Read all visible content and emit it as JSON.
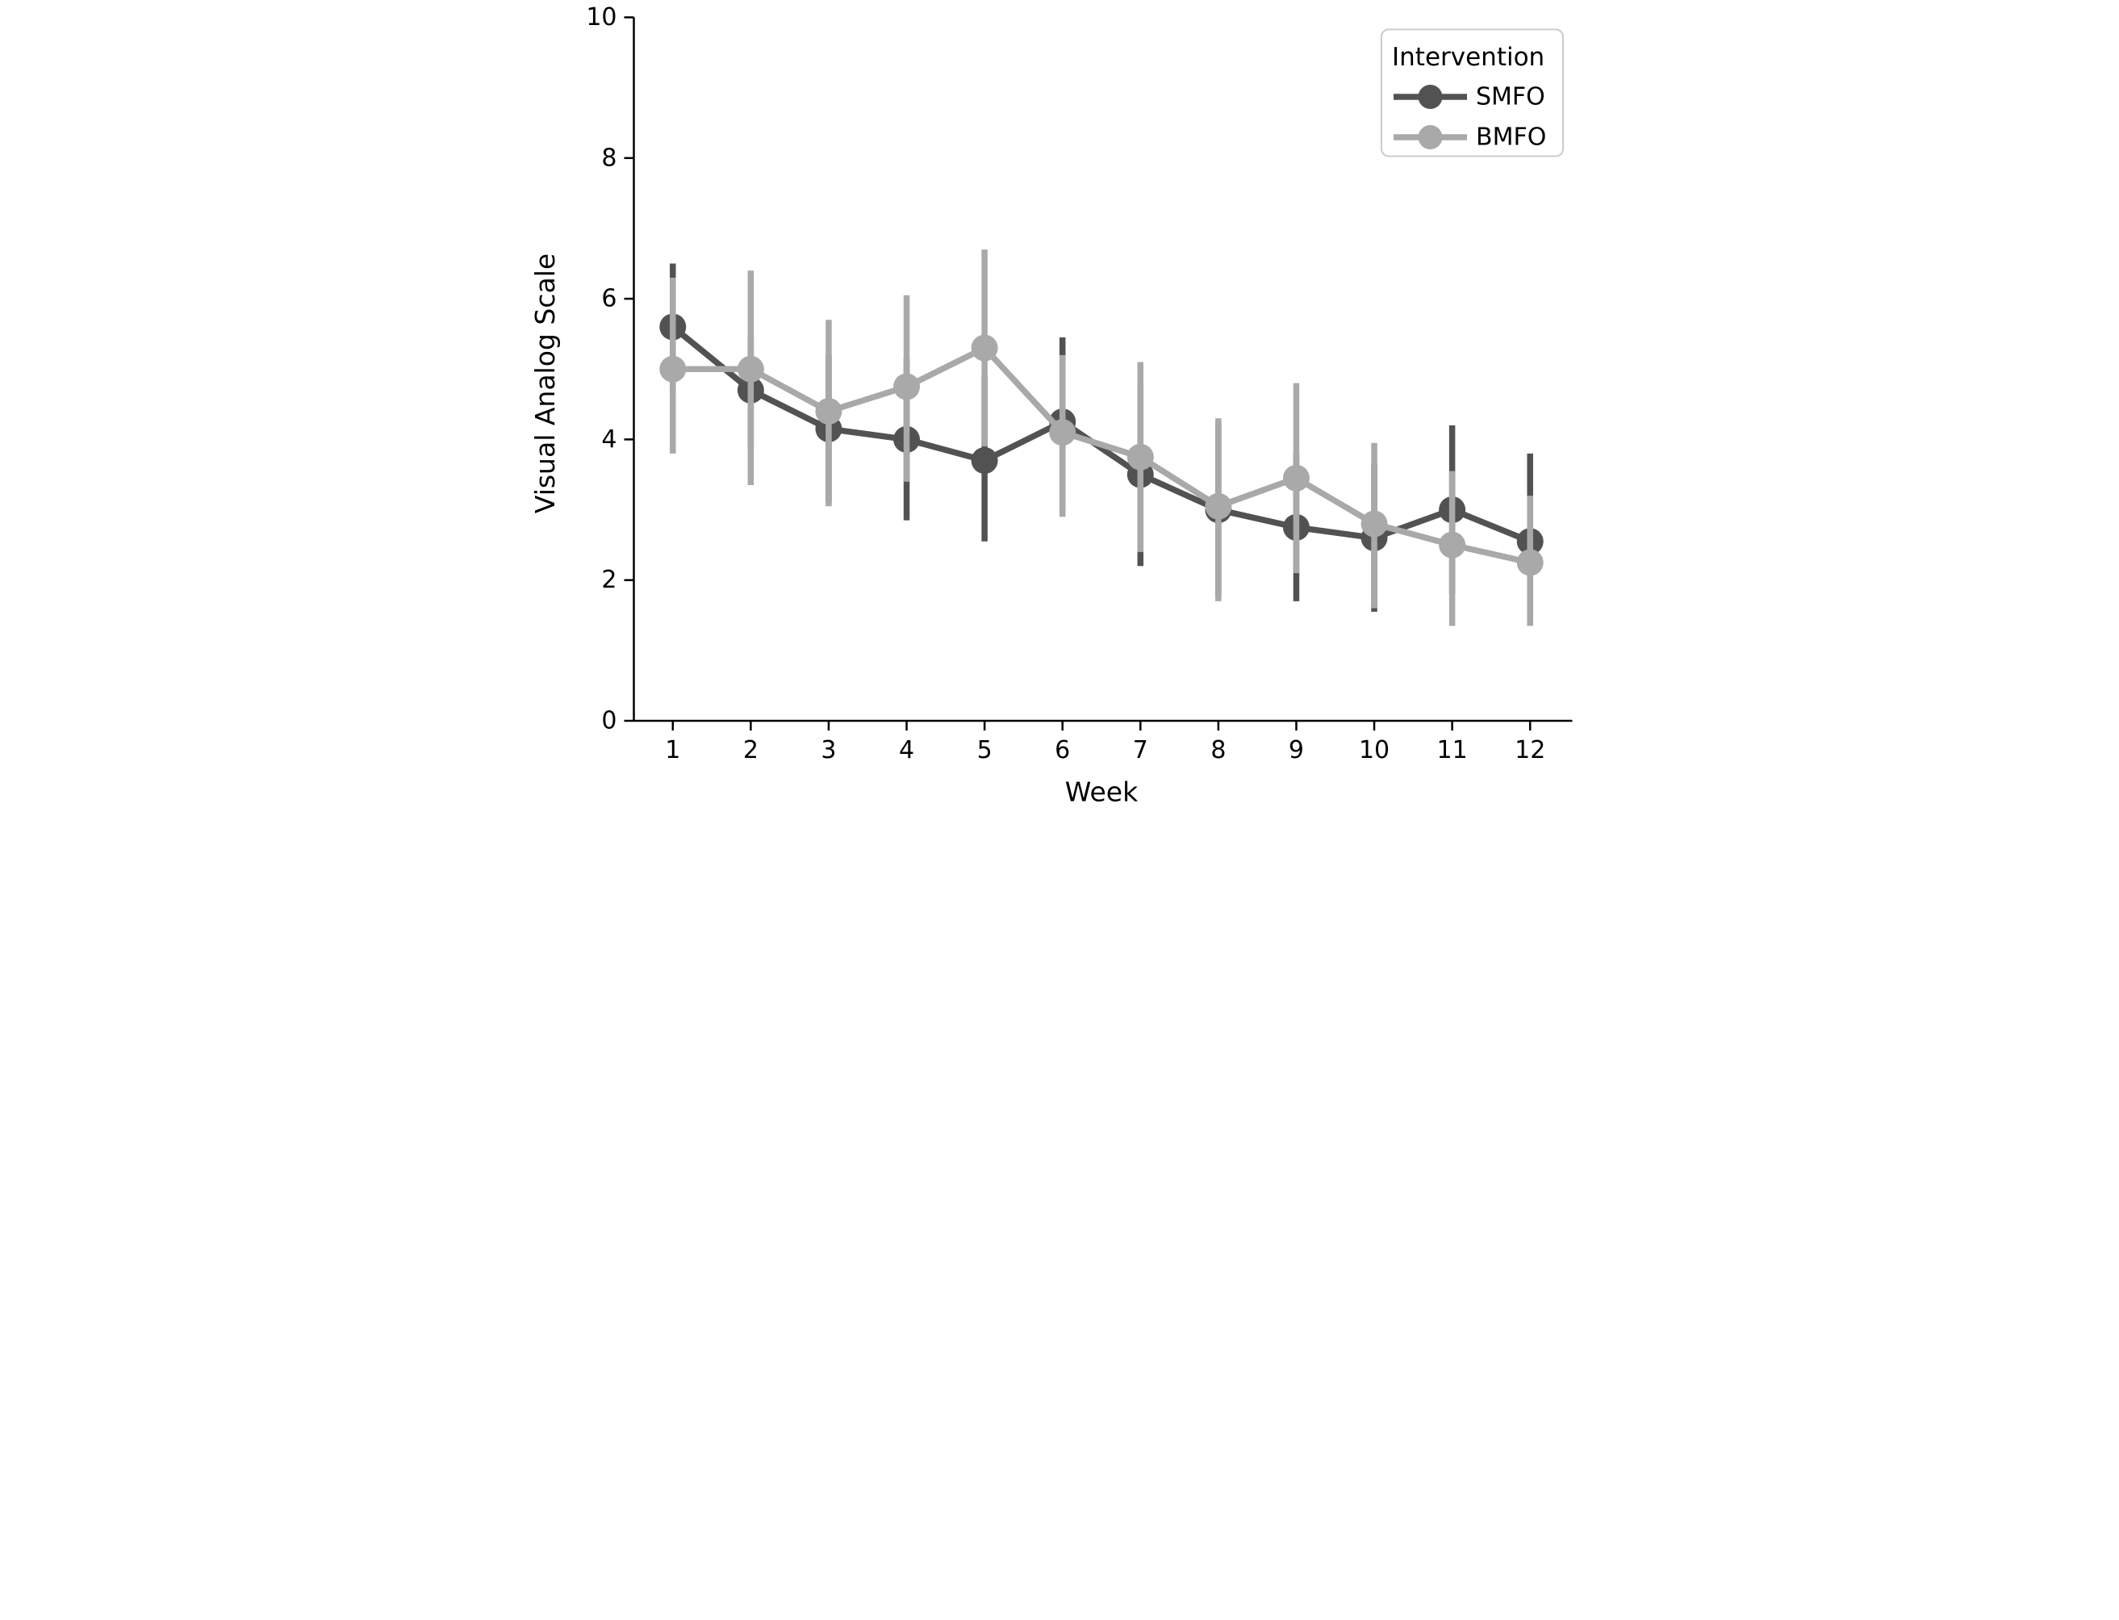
{
  "figure": {
    "background": "#ffffff",
    "axis_color": "#000000",
    "tick_label_fontsize": 60,
    "axis_label_fontsize": 66
  },
  "chart_data": {
    "type": "line",
    "title": "",
    "xlabel": "Week",
    "ylabel": "Visual Analog Scale",
    "categories": [
      "1",
      "2",
      "3",
      "4",
      "5",
      "6",
      "7",
      "8",
      "9",
      "10",
      "11",
      "12"
    ],
    "ylim": [
      0,
      10
    ],
    "yticks": [
      0,
      2,
      4,
      6,
      8,
      10
    ],
    "grid": false,
    "error_bars": true,
    "legend": {
      "title": "Intervention",
      "position": "upper right",
      "border_color": "#cccccc",
      "background": "#ffffff"
    },
    "series": [
      {
        "name": "SMFO",
        "color": "#525252",
        "values": [
          5.6,
          4.7,
          4.15,
          4.0,
          3.7,
          4.25,
          3.5,
          3.0,
          2.75,
          2.6,
          3.0,
          2.55
        ],
        "ci_low": [
          4.7,
          3.9,
          3.1,
          2.85,
          2.55,
          3.0,
          2.2,
          1.75,
          1.7,
          1.55,
          1.8,
          1.4
        ],
        "ci_high": [
          6.5,
          5.45,
          5.2,
          5.15,
          4.9,
          5.45,
          4.8,
          4.25,
          3.8,
          3.65,
          4.2,
          3.8
        ]
      },
      {
        "name": "BMFO",
        "color": "#a9a9a9",
        "values": [
          5.0,
          5.0,
          4.4,
          4.75,
          5.3,
          4.1,
          3.75,
          3.05,
          3.45,
          2.8,
          2.5,
          2.25
        ],
        "ci_low": [
          3.8,
          3.35,
          3.05,
          3.4,
          3.9,
          2.9,
          2.4,
          1.7,
          2.1,
          1.6,
          1.35,
          1.35
        ],
        "ci_high": [
          6.3,
          6.4,
          5.7,
          6.05,
          6.7,
          5.2,
          5.1,
          4.3,
          4.8,
          3.95,
          3.55,
          3.2
        ]
      }
    ]
  }
}
